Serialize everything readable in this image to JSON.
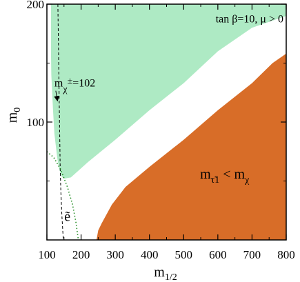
{
  "chart_data": {
    "type": "area",
    "x": {
      "label_main": "m",
      "label_sub": "1/2",
      "range": [
        100,
        800
      ],
      "ticks": [
        "100",
        "200",
        "300",
        "400",
        "500",
        "600",
        "700",
        "800"
      ]
    },
    "y": {
      "label_main": "m",
      "label_sub": "0",
      "range": [
        0,
        200
      ],
      "ticks": [
        "100",
        "200"
      ]
    },
    "regions": [
      {
        "id": "green",
        "color": "#aeeac4",
        "boundary": [
          [
            112,
            200
          ],
          [
            112,
            160
          ],
          [
            113,
            140
          ],
          [
            118,
            110
          ],
          [
            122,
            90
          ],
          [
            130,
            70
          ],
          [
            136,
            60
          ],
          [
            143,
            54
          ],
          [
            150,
            52
          ],
          [
            170,
            53
          ],
          [
            220,
            66
          ],
          [
            300,
            85
          ],
          [
            400,
            110
          ],
          [
            500,
            133
          ],
          [
            600,
            160
          ],
          [
            700,
            180
          ],
          [
            800,
            190
          ],
          [
            800,
            200
          ]
        ]
      },
      {
        "id": "orange",
        "color": "#d86d28",
        "boundary": [
          [
            245,
            0
          ],
          [
            250,
            8
          ],
          [
            260,
            14
          ],
          [
            290,
            30
          ],
          [
            330,
            45
          ],
          [
            400,
            62
          ],
          [
            500,
            85
          ],
          [
            600,
            110
          ],
          [
            700,
            133
          ],
          [
            760,
            150
          ],
          [
            800,
            158
          ],
          [
            800,
            0
          ]
        ],
        "label": {
          "main": "m",
          "sub": "τ̃1",
          "lt": " < m",
          "chi": "χ",
          "at": [
            548,
            52
          ]
        }
      }
    ],
    "lines": [
      {
        "id": "chargino",
        "style": "dashed",
        "color": "#000000",
        "points": [
          [
            132,
            200
          ],
          [
            133,
            180
          ],
          [
            134,
            160
          ],
          [
            135,
            140
          ],
          [
            136,
            120
          ],
          [
            137,
            100
          ],
          [
            138,
            80
          ],
          [
            139,
            60
          ],
          [
            141,
            40
          ],
          [
            144,
            20
          ],
          [
            148,
            0
          ]
        ],
        "label": {
          "main": "m",
          "sub": "χ",
          "sup": "±",
          "eq": "=102",
          "at": [
            122,
            130
          ]
        },
        "arrow_to": [
          135,
          118
        ]
      },
      {
        "id": "selectron",
        "style": "dotted",
        "color": "#228b22",
        "points": [
          [
            100,
            75
          ],
          [
            120,
            70
          ],
          [
            140,
            60
          ],
          [
            160,
            45
          ],
          [
            175,
            30
          ],
          [
            185,
            15
          ],
          [
            192,
            0
          ]
        ],
        "label": {
          "text": "ẽ",
          "at": [
            160,
            16
          ]
        }
      }
    ],
    "annotations": [
      {
        "text": "tan β=10, μ > 0",
        "at": [
          792,
          188
        ],
        "anchor": "end"
      }
    ]
  }
}
